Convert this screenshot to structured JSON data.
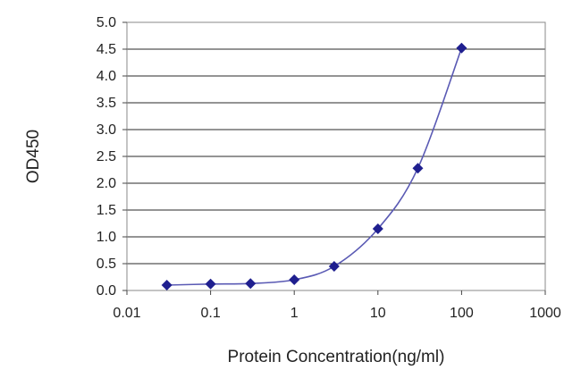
{
  "chart_data": {
    "type": "scatter",
    "title": "",
    "xlabel": "Protein Concentration(ng/ml)",
    "ylabel": "OD450",
    "x_scale": "log",
    "xlim": [
      0.01,
      1000
    ],
    "ylim": [
      0,
      5.0
    ],
    "x_ticks": [
      0.01,
      0.1,
      1,
      10,
      100,
      1000
    ],
    "x_tick_labels": [
      "0.01",
      "0.1",
      "1",
      "10",
      "100",
      "1000"
    ],
    "y_ticks": [
      0,
      0.5,
      1,
      1.5,
      2,
      2.5,
      3,
      3.5,
      4,
      4.5,
      5
    ],
    "y_tick_labels": [
      "0.0",
      "0.5",
      "1.0",
      "1.5",
      "2.0",
      "2.5",
      "3.0",
      "3.5",
      "4.0",
      "4.5",
      "5.0"
    ],
    "grid": "horizontal",
    "legend": "none",
    "series": [
      {
        "x": [
          0.03,
          0.1,
          0.3,
          1,
          3,
          10,
          30,
          100
        ],
        "y": [
          0.1,
          0.12,
          0.13,
          0.2,
          0.45,
          1.15,
          2.28,
          4.52
        ],
        "color": "#1f1f8f",
        "marker": "diamond",
        "line": "smooth"
      }
    ]
  }
}
